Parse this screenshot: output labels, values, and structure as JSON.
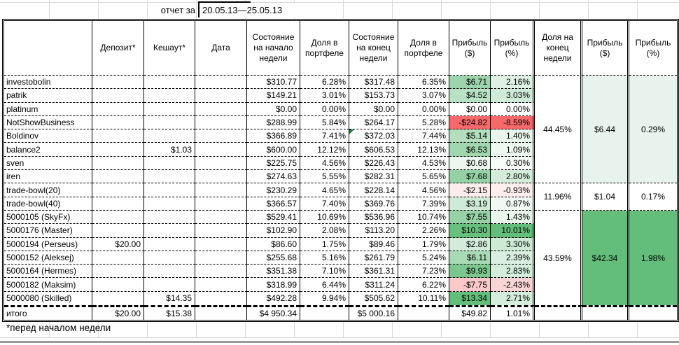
{
  "report": {
    "label": "отчет за",
    "period": "20.05.13—25.05.13"
  },
  "footnote": "*перед началом недели",
  "colors": {
    "scale_green_max": "#63BE7B",
    "scale_red_max": "#F8696B",
    "group_light_green": "#E9F3ED",
    "group_strong_green": "#63BE7B",
    "marker_green": "#1E7A34"
  },
  "table": {
    "columns": [
      {
        "key": "name",
        "label": ""
      },
      {
        "key": "deposit",
        "label": "Депозит*"
      },
      {
        "key": "cashout",
        "label": "Кешаут*"
      },
      {
        "key": "date",
        "label": "Дата"
      },
      {
        "key": "week_start",
        "label": "Состояние на начало недели"
      },
      {
        "key": "share_start",
        "label": "Доля в портфеле"
      },
      {
        "key": "week_end",
        "label": "Состояние на конец недели"
      },
      {
        "key": "share_end",
        "label": "Доля в портфеле"
      },
      {
        "key": "profit_usd",
        "label": "Прибыль ($)"
      },
      {
        "key": "profit_pct",
        "label": "Прибыль (%)"
      },
      {
        "key": "group_share",
        "label": "Доля на конец недели"
      },
      {
        "key": "group_profit_usd",
        "label": "Прибыль ($)"
      },
      {
        "key": "group_profit_pct",
        "label": "Прибыль (%)"
      }
    ],
    "rows": [
      {
        "name": "investobolin",
        "deposit": "",
        "cashout": "",
        "date": "",
        "start": "$310.77",
        "share_start": "6.28%",
        "end": "$317.48",
        "share_end": "6.35%",
        "profit": "$6.71",
        "profit_pct": "2.16%",
        "profit_bg": "#9ED4AD",
        "profit_pct_bg": "#DEF1E3"
      },
      {
        "name": "patrik",
        "deposit": "",
        "cashout": "",
        "date": "",
        "start": "$149.21",
        "share_start": "3.01%",
        "end": "$153.73",
        "share_end": "3.07%",
        "profit": "$4.52",
        "profit_pct": "3.03%",
        "profit_bg": "#B9E1C3",
        "profit_pct_bg": "#D0EBD7"
      },
      {
        "name": "platinum",
        "deposit": "",
        "cashout": "",
        "date": "",
        "start": "$0.00",
        "share_start": "0.00%",
        "end": "$0.00",
        "share_end": "0.00%",
        "profit": "$0.00",
        "profit_pct": "0.00%",
        "profit_bg": "#FFFFFF",
        "profit_pct_bg": "#FFFFFF"
      },
      {
        "name": "NotShowBusiness",
        "deposit": "",
        "cashout": "",
        "date": "",
        "start": "$288.99",
        "share_start": "5.84%",
        "end": "$264.17",
        "share_end": "5.28%",
        "profit": "-$24.82",
        "profit_pct": "-8.59%",
        "profit_bg": "#F8696B",
        "profit_pct_bg": "#F8696B"
      },
      {
        "name": "Boldinov",
        "deposit": "",
        "cashout": "",
        "date": "",
        "start": "$366.89",
        "share_start": "7.41%",
        "end": "$372.03",
        "share_end": "7.44%",
        "profit": "$5.14",
        "profit_pct": "1.40%",
        "profit_bg": "#B3DFBE",
        "profit_pct_bg": "#E9F6EC",
        "note_marker": true
      },
      {
        "name": "balance2",
        "deposit": "",
        "cashout": "$1.03",
        "date": "",
        "start": "$600.00",
        "share_start": "12.12%",
        "end": "$606.53",
        "share_end": "12.13%",
        "profit": "$6.53",
        "profit_pct": "1.09%",
        "profit_bg": "#A1D7AF",
        "profit_pct_bg": "#EDF8F0"
      },
      {
        "name": "sven",
        "deposit": "",
        "cashout": "",
        "date": "",
        "start": "$225.75",
        "share_start": "4.56%",
        "end": "$226.43",
        "share_end": "4.53%",
        "profit": "$0.68",
        "profit_pct": "0.30%",
        "profit_bg": "#EBF7EF",
        "profit_pct_bg": "#F8FCF9"
      },
      {
        "name": "iren",
        "deposit": "",
        "cashout": "",
        "date": "",
        "start": "$274.63",
        "share_start": "5.55%",
        "end": "$282.31",
        "share_end": "5.65%",
        "profit": "$7.68",
        "profit_pct": "2.80%",
        "profit_bg": "#94D1A5",
        "profit_pct_bg": "#D3EDDA"
      },
      {
        "name": "trade-bowl(20)",
        "deposit": "",
        "cashout": "",
        "date": "",
        "start": "$230.29",
        "share_start": "4.65%",
        "end": "$228.14",
        "share_end": "4.56%",
        "profit": "-$2.15",
        "profit_pct": "-0.93%",
        "profit_bg": "#FDEDED",
        "profit_pct_bg": "#FEEEEE"
      },
      {
        "name": "trade-bowl(40)",
        "deposit": "",
        "cashout": "",
        "date": "",
        "start": "$366.57",
        "share_start": "7.40%",
        "end": "$369.76",
        "share_end": "7.39%",
        "profit": "$3.19",
        "profit_pct": "0.87%",
        "profit_bg": "#CFEAD6",
        "profit_pct_bg": "#F0F9F3"
      },
      {
        "name": "5000105 (SkyFx)",
        "deposit": "",
        "cashout": "",
        "date": "",
        "start": "$529.41",
        "share_start": "10.69%",
        "end": "$536.96",
        "share_end": "10.74%",
        "profit": "$7.55",
        "profit_pct": "1.43%",
        "profit_bg": "#96D2A6",
        "profit_pct_bg": "#E9F6EC"
      },
      {
        "name": "5000176 (Master)",
        "deposit": "",
        "cashout": "",
        "date": "",
        "start": "$102.90",
        "share_start": "2.08%",
        "end": "$113.20",
        "share_end": "2.26%",
        "profit": "$10.30",
        "profit_pct": "10.01%",
        "profit_bg": "#68C07F",
        "profit_pct_bg": "#63BE7B"
      },
      {
        "name": "5000194 (Perseus)",
        "deposit": "$20.00",
        "cashout": "",
        "date": "",
        "start": "$86.60",
        "share_start": "1.75%",
        "end": "$89.46",
        "share_end": "1.79%",
        "profit": "$2.86",
        "profit_pct": "3.30%",
        "profit_bg": "#D3ECDA",
        "profit_pct_bg": "#CCEAD4"
      },
      {
        "name": "5000152 (Aleksej)",
        "deposit": "",
        "cashout": "",
        "date": "",
        "start": "$255.68",
        "share_start": "5.16%",
        "end": "$261.79",
        "share_end": "5.24%",
        "profit": "$6.11",
        "profit_pct": "2.39%",
        "profit_bg": "#A8DAB5",
        "profit_pct_bg": "#DAEFDF"
      },
      {
        "name": "5000164 (Hermes)",
        "deposit": "",
        "cashout": "",
        "date": "",
        "start": "$351.38",
        "share_start": "7.10%",
        "end": "$361.31",
        "share_end": "7.23%",
        "profit": "$9.93",
        "profit_pct": "2.83%",
        "profit_bg": "#7CC78F",
        "profit_pct_bg": "#D3EDDA"
      },
      {
        "name": "5000182 (Maksim)",
        "deposit": "",
        "cashout": "",
        "date": "",
        "start": "$318.99",
        "share_start": "6.44%",
        "end": "$311.24",
        "share_end": "6.22%",
        "profit": "-$7.75",
        "profit_pct": "-2.43%",
        "profit_bg": "#FBC9CA",
        "profit_pct_bg": "#FBD5D5"
      },
      {
        "name": "5000080 (Skilled)",
        "deposit": "",
        "cashout": "$14.35",
        "date": "",
        "start": "$492.28",
        "share_start": "9.94%",
        "end": "$505.62",
        "share_end": "10.11%",
        "profit": "$13.34",
        "profit_pct": "2.71%",
        "profit_bg": "#63BE7B",
        "profit_pct_bg": "#D5EDDB"
      }
    ],
    "groups": [
      {
        "share": "44.45%",
        "profit": "$6.44",
        "profit_pct": "0.29%",
        "row_start": 2,
        "row_span": 8,
        "value_bg": "#E9F3ED"
      },
      {
        "share": "11.96%",
        "profit": "$1.04",
        "profit_pct": "0.17%",
        "row_start": 10,
        "row_span": 2,
        "value_bg": "#FFFFFF"
      },
      {
        "share": "43.59%",
        "profit": "$42.34",
        "profit_pct": "1.98%",
        "row_start": 12,
        "row_span": 7,
        "value_bg": "#63BE7B"
      }
    ],
    "total": {
      "label": "итого",
      "deposit": "$20.00",
      "cashout": "$15.38",
      "date": "",
      "start": "$4 950.34",
      "share_start": "",
      "end": "$5 000.16",
      "share_end": "",
      "profit": "$49.82",
      "profit_pct": "1.01%"
    }
  }
}
